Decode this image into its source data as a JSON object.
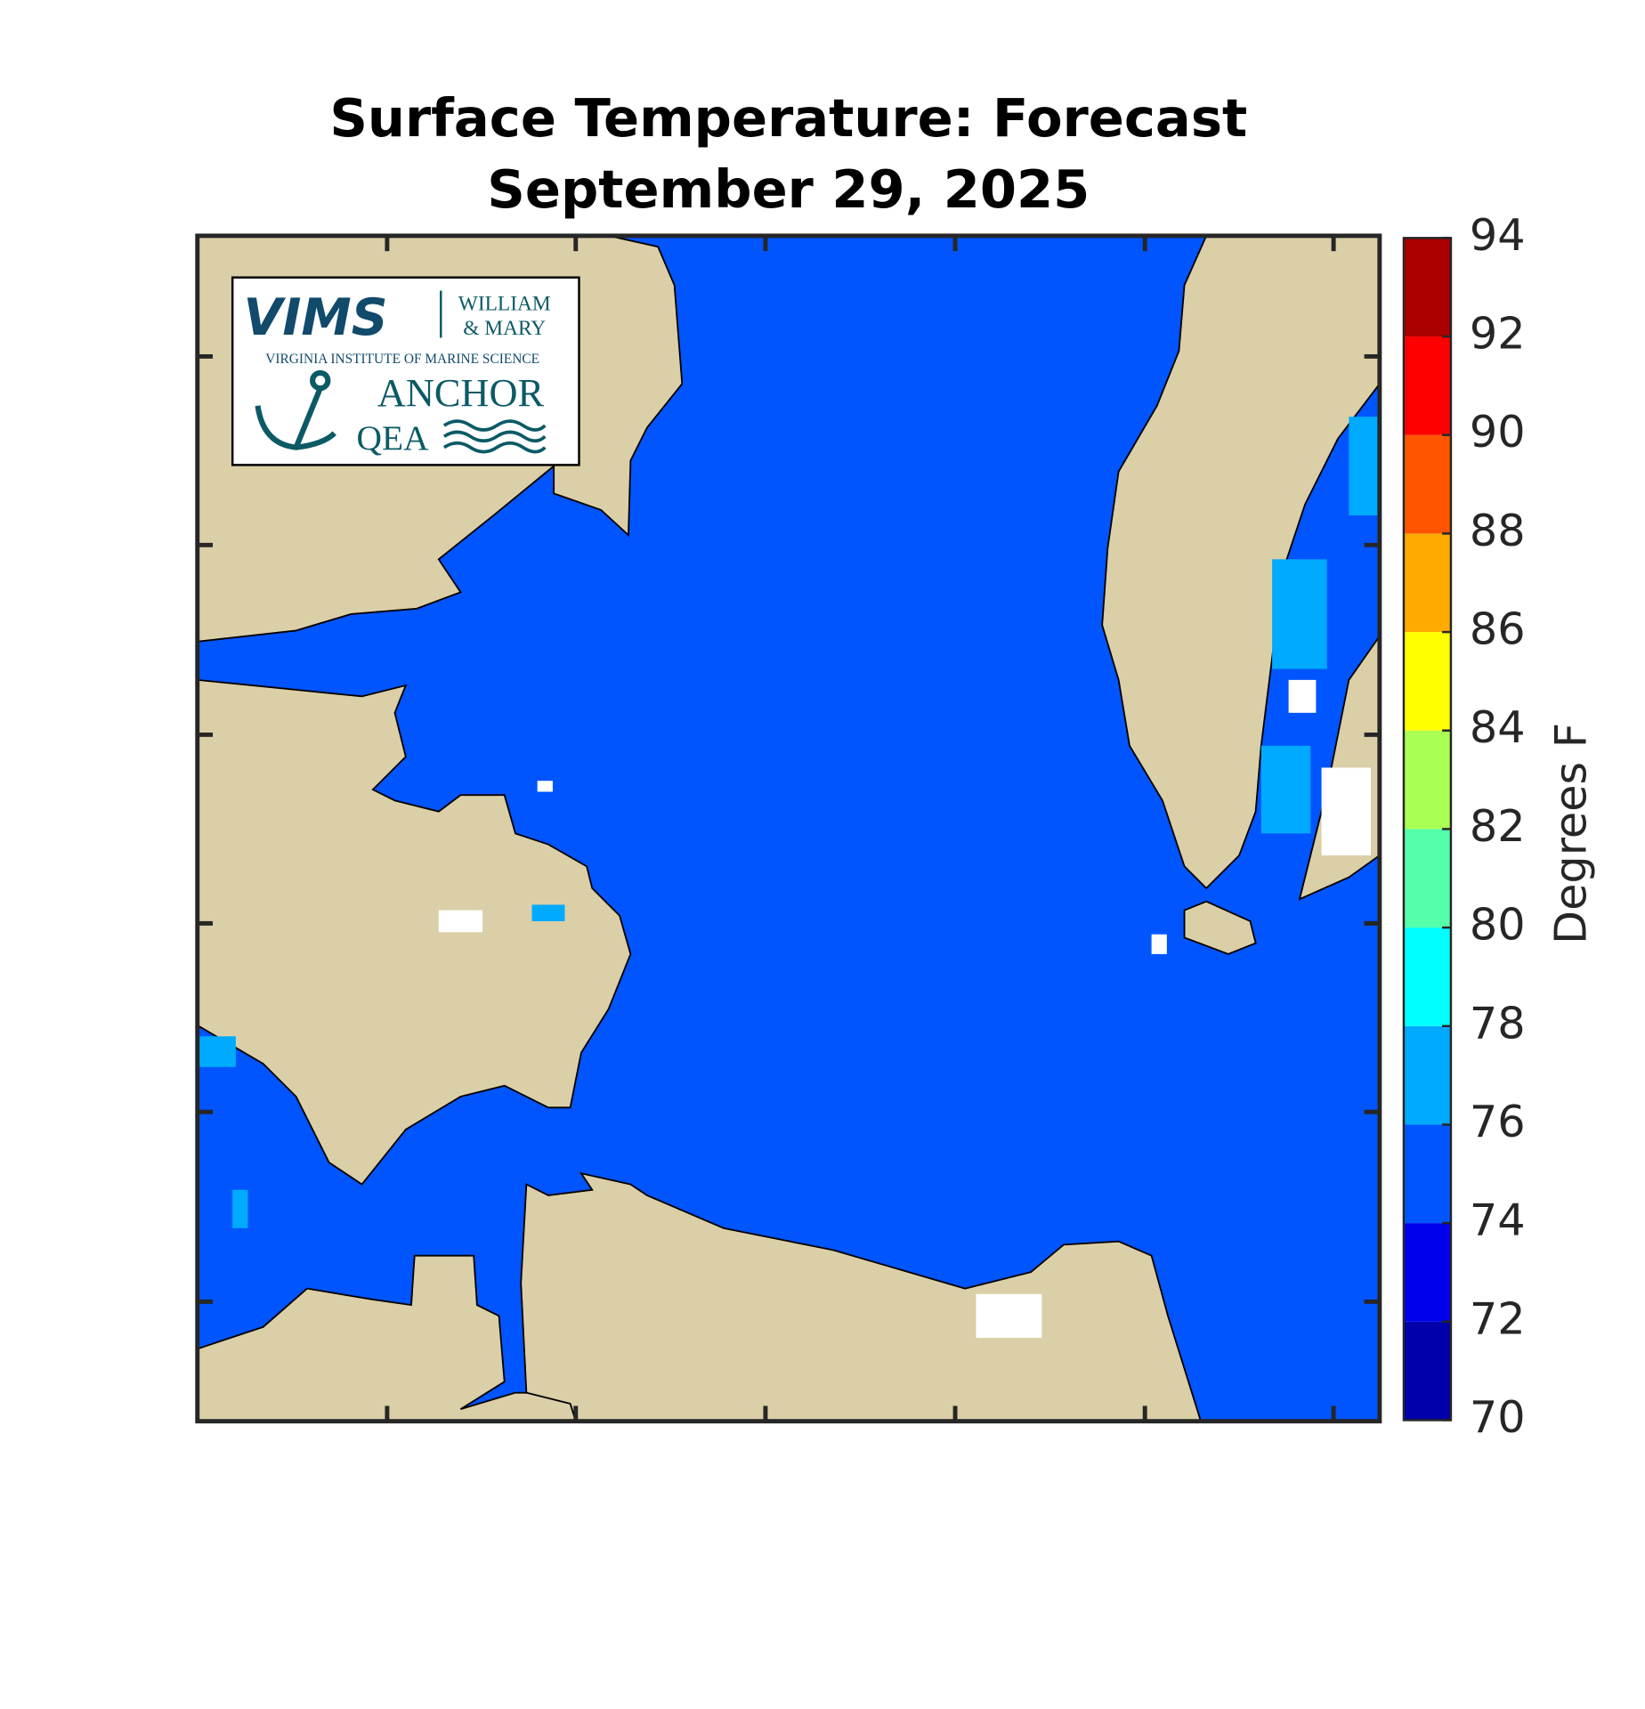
{
  "chart_data": {
    "type": "colorbar",
    "title": "Surface Temperature: Forecast",
    "subtitle": "September 29, 2025",
    "ylabel": "Degrees F",
    "ylim": [
      70,
      94
    ],
    "yticks": [
      70,
      72,
      74,
      76,
      78,
      80,
      82,
      84,
      86,
      88,
      90,
      92,
      94
    ],
    "colors": [
      "#0000aa",
      "#0000ee",
      "#0055ff",
      "#00aaff",
      "#00ffff",
      "#55ffaa",
      "#aaff55",
      "#ffff00",
      "#ffaa00",
      "#ff5500",
      "#ff0000",
      "#aa0000"
    ]
  },
  "logo": {
    "vims": "VIMS",
    "william": "WILLIAM",
    "mary": "& MARY",
    "institute": "VIRGINIA INSTITUTE OF MARINE SCIENCE",
    "anchor": "ANCHOR",
    "qea": "QEA"
  }
}
